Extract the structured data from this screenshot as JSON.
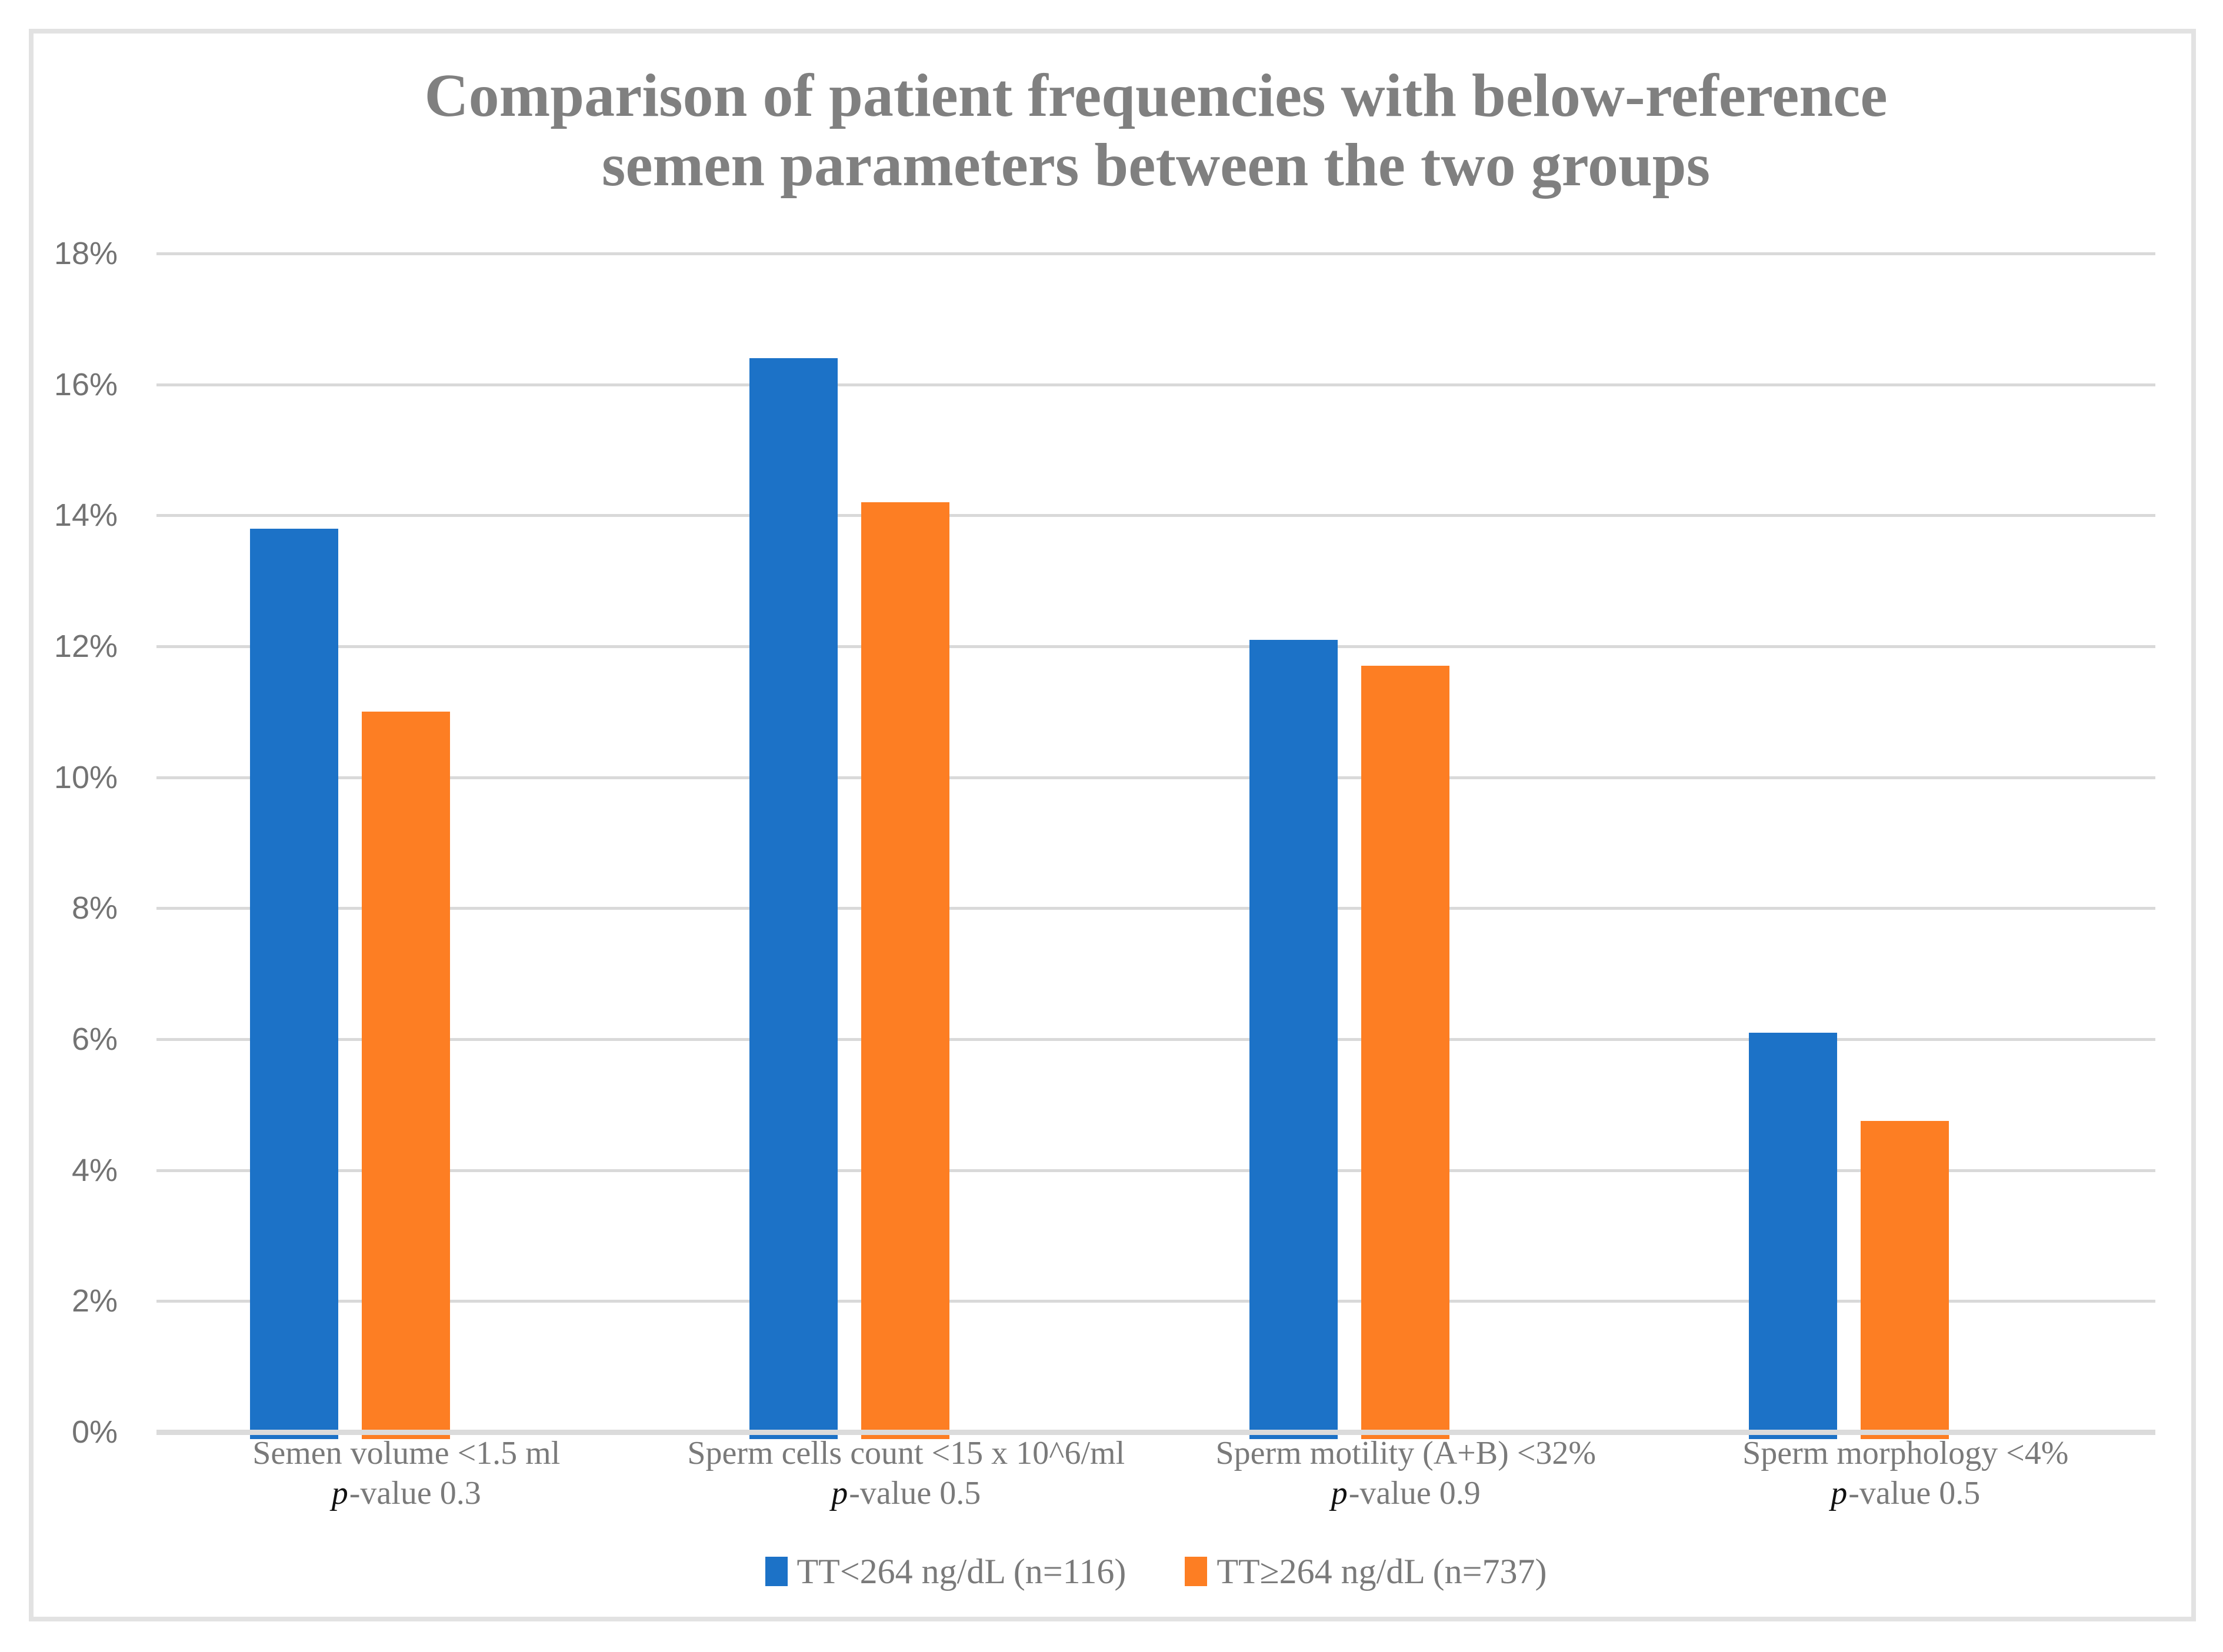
{
  "chart_data": {
    "type": "bar",
    "title_lines": [
      "Comparison of patient frequencies with below-reference",
      "semen parameters between the two groups"
    ],
    "title": "Comparison of patient frequencies with below-reference semen parameters between the two groups",
    "xlabel": "",
    "ylabel": "",
    "value_format": "percent",
    "ylim": [
      0,
      18
    ],
    "grid": true,
    "legend_position": "bottom",
    "y_ticks": [
      "18%",
      "16%",
      "14%",
      "12%",
      "10%",
      "8%",
      "6%",
      "4%",
      "2%",
      "0%"
    ],
    "categories": [
      {
        "label": "Semen volume <1.5 ml",
        "p_prefix": "p",
        "p_rest": "-value 0.3"
      },
      {
        "label": "Sperm cells count <15 x 10^6/ml",
        "p_prefix": "p",
        "p_rest": "-value 0.5"
      },
      {
        "label": "Sperm motility (A+B) <32%",
        "p_prefix": "p",
        "p_rest": "-value 0.9"
      },
      {
        "label": "Sperm morphology <4%",
        "p_prefix": "p",
        "p_rest": "-value 0.5"
      }
    ],
    "series": [
      {
        "name": "TT<264 ng/dL (n=116)",
        "color": "#1C72C7",
        "values": [
          13.8,
          16.4,
          12.1,
          6.1
        ]
      },
      {
        "name": "TT≥264 ng/dL (n=737)",
        "color": "#FD7E23",
        "values": [
          11.0,
          14.2,
          11.7,
          4.75
        ]
      }
    ],
    "colors": {
      "gridline": "#D9D9D9",
      "axis_line": "#DBDBDB",
      "title_text": "#808080",
      "axis_text": "#737373",
      "category_text": "#7A7A7A",
      "p_value_text": "#111111",
      "chart_border": "#E2E2E2"
    }
  }
}
